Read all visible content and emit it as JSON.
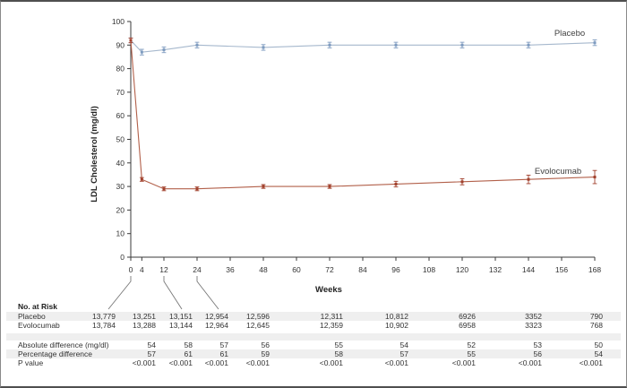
{
  "chart_data": {
    "type": "line",
    "title": "",
    "xlabel": "Weeks",
    "ylabel": "LDL Cholesterol (mg/dl)",
    "ylim": [
      0,
      100
    ],
    "y_tick_step": 10,
    "x_ticks": [
      0,
      4,
      12,
      24,
      36,
      48,
      60,
      72,
      84,
      96,
      108,
      120,
      132,
      144,
      156,
      168
    ],
    "x": [
      0,
      4,
      12,
      24,
      48,
      72,
      96,
      120,
      144,
      168
    ],
    "grid": false,
    "legend_position": "inline-labels-right",
    "series": [
      {
        "name": "Placebo",
        "color": "#a6b8cd",
        "accent": "#7f9cc0",
        "values": [
          92,
          87,
          88,
          90,
          89,
          90,
          90,
          90,
          90,
          91
        ],
        "errors": [
          1,
          1.2,
          1.2,
          1.2,
          1.2,
          1.2,
          1.2,
          1.2,
          1.2,
          1.2
        ]
      },
      {
        "name": "Evolocumab",
        "color": "#b2604a",
        "accent": "#a1402c",
        "values": [
          92,
          33,
          29,
          29,
          30,
          30,
          31,
          32,
          33,
          34
        ],
        "errors": [
          1,
          0.8,
          0.8,
          0.8,
          0.8,
          0.8,
          1.2,
          1.3,
          1.8,
          2.8
        ]
      }
    ]
  },
  "risk_table": {
    "title": "No. at Risk",
    "count_rows": [
      {
        "label": "Placebo",
        "values": [
          "13,779",
          "13,251",
          "13,151",
          "12,954",
          "12,596",
          "12,311",
          "10,812",
          "6926",
          "3352",
          "790"
        ]
      },
      {
        "label": "Evolocumab",
        "values": [
          "13,784",
          "13,288",
          "13,144",
          "12,964",
          "12,645",
          "12,359",
          "10,902",
          "6958",
          "3323",
          "768"
        ]
      }
    ],
    "stat_rows": [
      {
        "label": "Absolute difference (mg/dl)",
        "values": [
          "54",
          "58",
          "57",
          "56",
          "55",
          "54",
          "52",
          "53",
          "50"
        ]
      },
      {
        "label": "Percentage difference",
        "values": [
          "57",
          "61",
          "61",
          "59",
          "58",
          "57",
          "55",
          "56",
          "54"
        ]
      },
      {
        "label": "P value",
        "values": [
          "<0.001",
          "<0.001",
          "<0.001",
          "<0.001",
          "<0.001",
          "<0.001",
          "<0.001",
          "<0.001",
          "<0.001"
        ]
      }
    ]
  },
  "colors": {
    "axis": "#3a3a3a",
    "text": "#333333",
    "leader": "#777777",
    "band": "#efefef"
  }
}
